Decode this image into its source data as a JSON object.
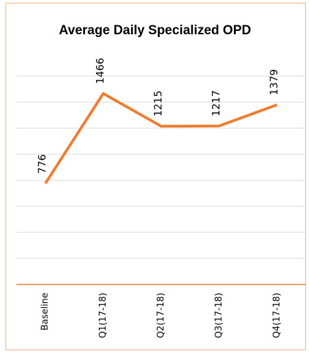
{
  "chart_data": {
    "type": "line",
    "title": "Average Daily Specialized OPD",
    "categories": [
      "Baseline",
      "Q1(17-18)",
      "Q2(17-18)",
      "Q3(17-18)",
      "Q4(17-18)"
    ],
    "series": [
      {
        "name": "Average Daily Specialized OPD",
        "color": "#ed7d31",
        "values": [
          776,
          1466,
          1215,
          1217,
          1379
        ]
      }
    ],
    "ylim": [
      0,
      1600
    ],
    "yticks": [
      0,
      200,
      400,
      600,
      800,
      1000,
      1200,
      1400,
      1600
    ],
    "grid": true
  }
}
